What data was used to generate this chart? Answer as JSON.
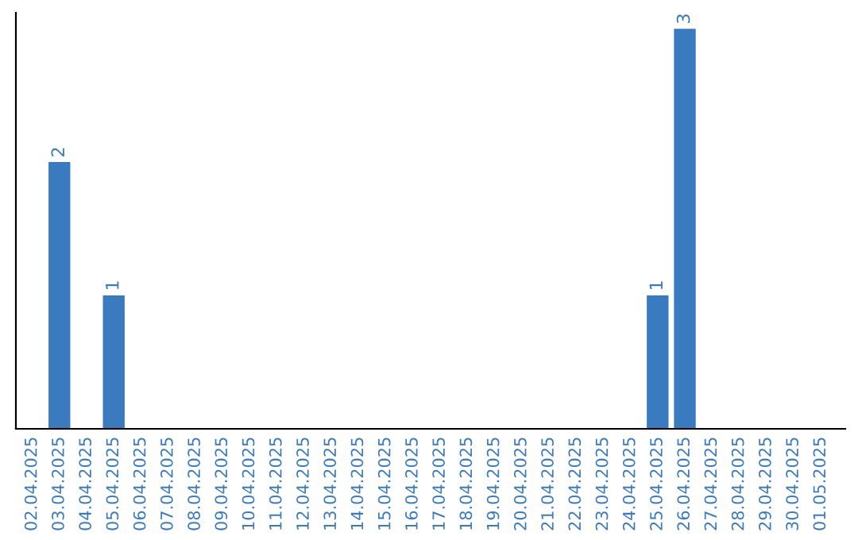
{
  "chart_data": {
    "type": "bar",
    "categories": [
      "02.04.2025",
      "03.04.2025",
      "04.04.2025",
      "05.04.2025",
      "06.04.2025",
      "07.04.2025",
      "08.04.2025",
      "09.04.2025",
      "10.04.2025",
      "11.04.2025",
      "12.04.2025",
      "13.04.2025",
      "14.04.2025",
      "15.04.2025",
      "16.04.2025",
      "17.04.2025",
      "18.04.2025",
      "19.04.2025",
      "20.04.2025",
      "21.04.2025",
      "22.04.2025",
      "23.04.2025",
      "24.04.2025",
      "25.04.2025",
      "26.04.2025",
      "27.04.2025",
      "28.04.2025",
      "29.04.2025",
      "30.04.2025",
      "01.05.2025"
    ],
    "values": [
      0,
      2,
      0,
      1,
      0,
      0,
      0,
      0,
      0,
      0,
      0,
      0,
      0,
      0,
      0,
      0,
      0,
      0,
      0,
      0,
      0,
      0,
      0,
      1,
      3,
      0,
      0,
      0,
      0,
      0
    ],
    "value_labels": [
      null,
      "2",
      null,
      "1",
      null,
      null,
      null,
      null,
      null,
      null,
      null,
      null,
      null,
      null,
      null,
      null,
      null,
      null,
      null,
      null,
      null,
      null,
      null,
      "1",
      "3",
      null,
      null,
      null,
      null,
      null
    ],
    "color": "#3a7bc0",
    "tick_labels": "x",
    "grid": false,
    "legend": false
  }
}
